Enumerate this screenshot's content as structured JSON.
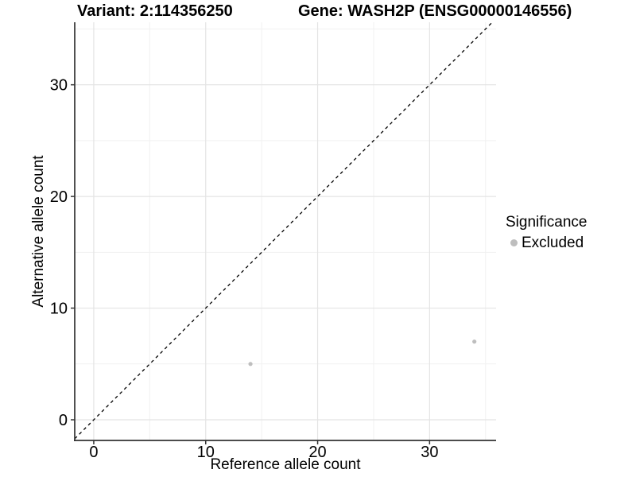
{
  "chart_data": {
    "type": "scatter",
    "titles": {
      "left": "Variant: 2:114356250",
      "right": "Gene: WASH2P (ENSG00000146556)"
    },
    "xlabel": "Reference allele count",
    "ylabel": "Alternative allele count",
    "xlim": [
      -1.7,
      35.94
    ],
    "ylim": [
      -1.85,
      35.6
    ],
    "x_major_ticks": [
      0,
      10,
      20,
      30
    ],
    "y_major_ticks": [
      0,
      10,
      20,
      30
    ],
    "x_minor_gridlines": [
      5,
      15,
      25,
      35
    ],
    "y_minor_gridlines": [
      5,
      15,
      25,
      35
    ],
    "grid": true,
    "identity_line": {
      "style": "dashed",
      "slope": 1,
      "intercept": 0,
      "color": "#000000"
    },
    "series": [
      {
        "name": "Excluded",
        "color": "#bebebe",
        "points": [
          [
            14,
            5
          ],
          [
            34,
            7
          ]
        ]
      }
    ],
    "legend": {
      "position": "right",
      "title": "Significance",
      "items": [
        {
          "label": "Excluded",
          "color": "#bebebe"
        }
      ]
    },
    "colors": {
      "major_grid": "#e4e4e4",
      "minor_grid": "#f1f1f1",
      "axis_line": "#333333",
      "text": "#000000",
      "background": "#ffffff"
    }
  }
}
